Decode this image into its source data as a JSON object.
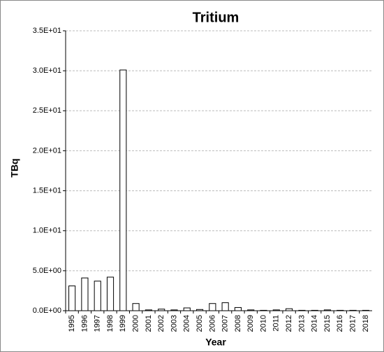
{
  "chart_data": {
    "type": "bar",
    "title": "Tritium",
    "x_label": "Year",
    "y_label": "TBq",
    "categories": [
      "1995",
      "1996",
      "1997",
      "1998",
      "1999",
      "2000",
      "2001",
      "2002",
      "2003",
      "2004",
      "2005",
      "2006",
      "2007",
      "2008",
      "2009",
      "2010",
      "2011",
      "2012",
      "2013",
      "2014",
      "2015",
      "2016",
      "2017",
      "2018"
    ],
    "values": [
      3.1,
      4.1,
      3.7,
      4.2,
      30.1,
      0.9,
      0.1,
      0.2,
      0.1,
      0.35,
      0.15,
      0.9,
      1.0,
      0.4,
      0.1,
      0.05,
      0.1,
      0.25,
      0.05,
      0.05,
      0.1,
      0.05,
      0.05,
      0.05
    ],
    "color": "#ffffff",
    "ylim": [
      0,
      35
    ],
    "yticks": [
      {
        "value": 0,
        "label": "0.0E+00"
      },
      {
        "value": 5,
        "label": "5.0E+00"
      },
      {
        "value": 10,
        "label": "1.0E+01"
      },
      {
        "value": 15,
        "label": "1.5E+01"
      },
      {
        "value": 20,
        "label": "2.0E+01"
      },
      {
        "value": 25,
        "label": "2.5E+01"
      },
      {
        "value": 30,
        "label": "3.0E+01"
      },
      {
        "value": 35,
        "label": "3.5E+01"
      }
    ],
    "grid": true
  }
}
